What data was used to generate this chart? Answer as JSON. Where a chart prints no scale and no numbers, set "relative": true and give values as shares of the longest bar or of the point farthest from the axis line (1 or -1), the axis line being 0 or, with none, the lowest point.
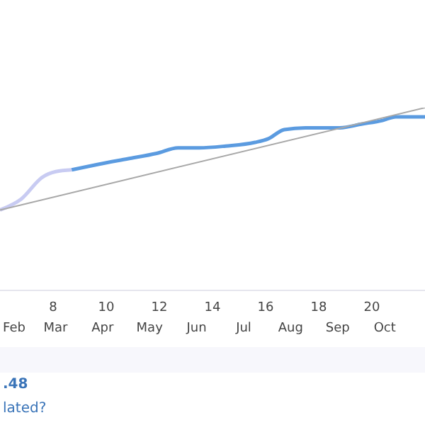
{
  "chart_data": {
    "type": "line",
    "relative": true,
    "xlim": [
      6,
      22
    ],
    "xticks": [
      8,
      10,
      12,
      14,
      16,
      18,
      20
    ],
    "series": [
      {
        "color": "#c8cbf2",
        "x": [
          6,
          6.8,
          7.6,
          8.1,
          8.7
        ],
        "values": [
          0.44,
          0.5,
          0.62,
          0.65,
          0.66
        ]
      },
      {
        "color": "#5b9be0",
        "x": [
          8.7,
          9.7,
          10.8,
          11.9,
          12.7,
          13.5,
          14.5,
          15.6,
          16.1,
          16.7,
          17.5,
          18.8,
          19.6,
          20.4,
          20.9,
          22
        ],
        "values": [
          0.66,
          0.69,
          0.72,
          0.75,
          0.78,
          0.78,
          0.79,
          0.81,
          0.83,
          0.88,
          0.89,
          0.89,
          0.91,
          0.93,
          0.95,
          0.95
        ]
      },
      {
        "color": "#a8a8a8",
        "x": [
          6,
          22
        ],
        "values": [
          0.44,
          1
        ]
      }
    ],
    "annotations": [
      "Feb",
      "Mar",
      "Apr",
      "May",
      "Jun",
      "Jul",
      "Aug",
      "Sep",
      "Oct",
      ".48",
      "lated?"
    ]
  }
}
